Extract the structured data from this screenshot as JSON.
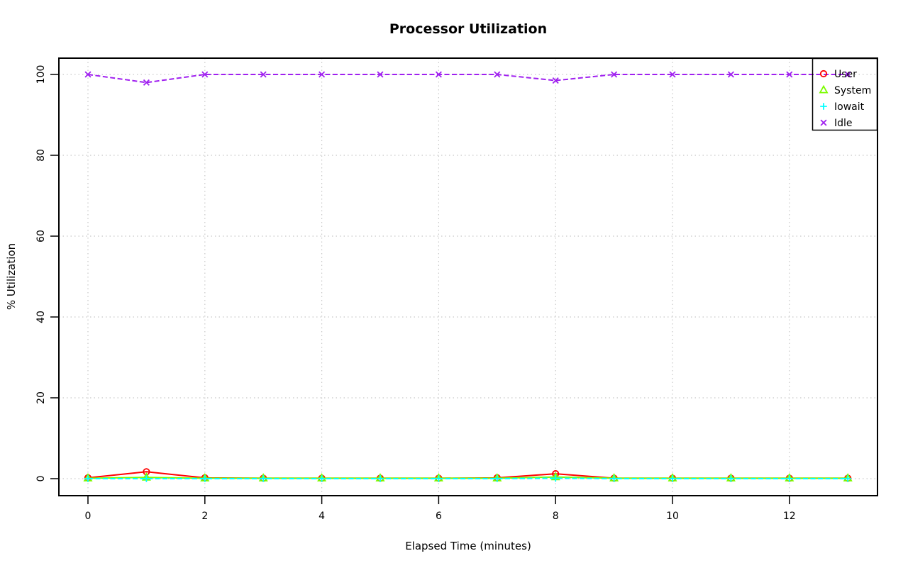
{
  "chart_data": {
    "type": "line",
    "title": "Processor Utilization",
    "xlabel": "Elapsed Time (minutes)",
    "ylabel": "% Utilization",
    "x": [
      0,
      1,
      2,
      3,
      4,
      5,
      6,
      7,
      8,
      9,
      10,
      11,
      12,
      13
    ],
    "series": [
      {
        "name": "User",
        "color": "#ff0000",
        "marker": "circle",
        "line": "solid",
        "values": [
          0.2,
          1.7,
          0.2,
          0.1,
          0.1,
          0.1,
          0.1,
          0.2,
          1.2,
          0.1,
          0.1,
          0.1,
          0.1,
          0.1
        ]
      },
      {
        "name": "System",
        "color": "#7cfc00",
        "marker": "triangle",
        "line": "solid",
        "values": [
          0.1,
          0.3,
          0.1,
          0.1,
          0.1,
          0.1,
          0.1,
          0.1,
          0.4,
          0.1,
          0.1,
          0.1,
          0.1,
          0.1
        ]
      },
      {
        "name": "Iowait",
        "color": "#00ffff",
        "marker": "plus",
        "line": "dashed",
        "values": [
          0,
          0,
          0,
          0,
          0,
          0,
          0,
          0,
          0.1,
          0,
          0,
          0,
          0,
          0
        ]
      },
      {
        "name": "Idle",
        "color": "#a020f0",
        "marker": "x",
        "line": "dashed",
        "values": [
          100,
          98,
          100,
          100,
          100,
          100,
          100,
          100,
          98.5,
          100,
          100,
          100,
          100,
          100
        ]
      }
    ],
    "xticks": [
      0,
      2,
      4,
      6,
      8,
      10,
      12
    ],
    "yticks": [
      0,
      20,
      40,
      60,
      80,
      100
    ],
    "xlim": [
      0,
      13
    ],
    "ylim": [
      0,
      100
    ],
    "grid": true,
    "grid_color": "#c8c8c8",
    "axis_color": "#000000",
    "legend_position": "topright",
    "legend_labels": [
      "User",
      "System",
      "Iowait",
      "Idle"
    ]
  }
}
